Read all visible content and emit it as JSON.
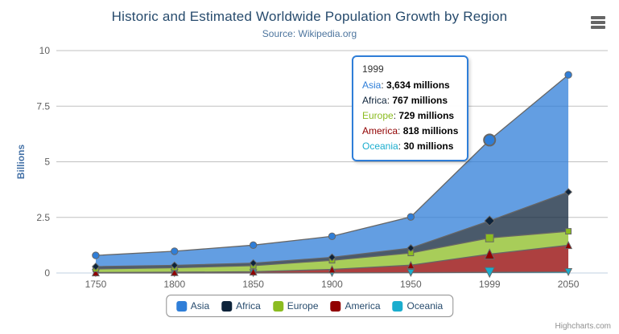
{
  "title": "Historic and Estimated Worldwide Population Growth by Region",
  "subtitle": "Source: Wikipedia.org",
  "credits": "Highcharts.com",
  "colors": {
    "title": "#274b6d",
    "subtitle": "#4d759e",
    "axis_label": "#606060",
    "axis_title": "#4572a7",
    "gridline": "#c0c0c0",
    "x_axis_line": "#c0d0e0",
    "series_line": "#666666",
    "legend_text": "#274b6d",
    "legend_border": "#909090",
    "credits_text": "#909090"
  },
  "chart_data": {
    "type": "area",
    "stacking": "normal",
    "title": "Historic and Estimated Worldwide Population Growth by Region",
    "subtitle": "Source: Wikipedia.org",
    "categories": [
      "1750",
      "1800",
      "1850",
      "1900",
      "1950",
      "1999",
      "2050"
    ],
    "series": [
      {
        "name": "Asia",
        "color": "#2f7ed8",
        "marker": "circle",
        "values": [
          502,
          635,
          809,
          947,
          1402,
          3634,
          5268
        ]
      },
      {
        "name": "Africa",
        "color": "#0d233a",
        "marker": "diamond",
        "values": [
          106,
          107,
          111,
          133,
          221,
          767,
          1766
        ]
      },
      {
        "name": "Europe",
        "color": "#8bbc21",
        "marker": "square",
        "values": [
          163,
          203,
          276,
          408,
          547,
          729,
          628
        ]
      },
      {
        "name": "America",
        "color": "#910000",
        "marker": "triangle",
        "values": [
          18,
          31,
          54,
          156,
          339,
          818,
          1201
        ]
      },
      {
        "name": "Oceania",
        "color": "#1aadce",
        "marker": "triangle-down",
        "values": [
          2,
          2,
          2,
          6,
          13,
          30,
          46
        ]
      }
    ],
    "stack_order_bottom_to_top": [
      "Oceania",
      "America",
      "Europe",
      "Africa",
      "Asia"
    ],
    "values_unit": "millions",
    "xlabel": "",
    "ylabel": "Billions",
    "ylim": [
      0,
      10
    ],
    "yticks": [
      "0",
      "2.5",
      "5",
      "7.5",
      "10"
    ],
    "y_scale_divisor": 1000,
    "fill_opacity": 0.75,
    "grid": true,
    "legend_position": "bottom"
  },
  "tooltip": {
    "header": "1999",
    "highlight_category": "1999",
    "border_color": "#2f7ed8",
    "rows": [
      {
        "region": "Asia",
        "value": "3,634 millions"
      },
      {
        "region": "Africa",
        "value": "767 millions"
      },
      {
        "region": "Europe",
        "value": "729 millions"
      },
      {
        "region": "America",
        "value": "818 millions"
      },
      {
        "region": "Oceania",
        "value": "30 millions"
      }
    ]
  },
  "legend": {
    "items": [
      "Asia",
      "Africa",
      "Europe",
      "America",
      "Oceania"
    ]
  }
}
